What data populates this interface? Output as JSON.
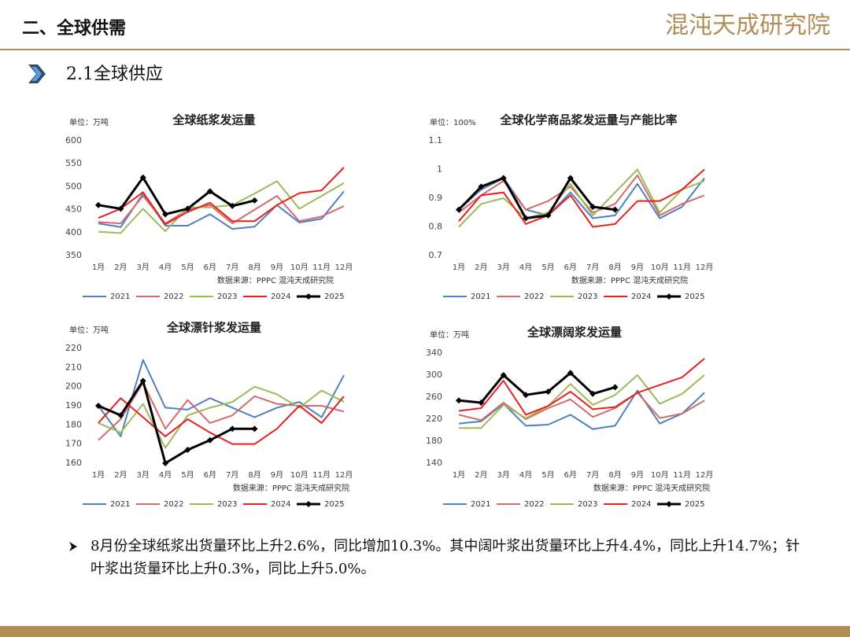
{
  "header": {
    "title": "二、全球供需",
    "logo": "混沌天成研究院",
    "section": "2.1全球供应"
  },
  "chart_data": [
    {
      "type": "line",
      "title": "全球纸浆发运量",
      "unit": "单位：万吨",
      "source": "数据来源：PPPC 混沌天成研究院",
      "categories": [
        "1月",
        "2月",
        "3月",
        "4月",
        "5月",
        "6月",
        "7月",
        "8月",
        "9月",
        "10月",
        "11月",
        "12月"
      ],
      "ylim": [
        350,
        600
      ],
      "yticks": [
        350,
        400,
        450,
        500,
        550,
        600
      ],
      "grid": false,
      "series": [
        {
          "name": "2021",
          "color": "#4f81bd",
          "values": [
            420,
            412,
            485,
            415,
            415,
            440,
            408,
            413,
            460,
            422,
            430,
            490
          ]
        },
        {
          "name": "2022",
          "color": "#d36b6b",
          "values": [
            423,
            420,
            480,
            420,
            450,
            460,
            420,
            450,
            480,
            425,
            435,
            458
          ]
        },
        {
          "name": "2023",
          "color": "#9bbb59",
          "values": [
            402,
            399,
            452,
            403,
            455,
            455,
            460,
            485,
            512,
            452,
            480,
            508
          ]
        },
        {
          "name": "2024",
          "color": "#e8201f",
          "values": [
            432,
            452,
            488,
            418,
            445,
            465,
            425,
            425,
            460,
            486,
            492,
            542
          ]
        },
        {
          "name": "2025",
          "color": "#000000",
          "values": [
            460,
            452,
            520,
            440,
            452,
            490,
            458,
            470,
            null,
            null,
            null,
            null
          ]
        }
      ]
    },
    {
      "type": "line",
      "title": "全球化学商品浆发运量与产能比率",
      "unit": "单位：100%",
      "source": "数据来源：PPPC 混沌天成研究院",
      "categories": [
        "1月",
        "2月",
        "3月",
        "4月",
        "5月",
        "6月",
        "7月",
        "8月",
        "9月",
        "10月",
        "11月",
        "12月"
      ],
      "ylim": [
        0.7,
        1.1
      ],
      "yticks": [
        0.7,
        0.8,
        0.9,
        1,
        1.1
      ],
      "grid": false,
      "series": [
        {
          "name": "2021",
          "color": "#4f81bd",
          "values": [
            0.86,
            0.93,
            0.97,
            0.86,
            0.84,
            0.92,
            0.83,
            0.84,
            0.95,
            0.83,
            0.87,
            0.97
          ]
        },
        {
          "name": "2022",
          "color": "#d36b6b",
          "values": [
            0.85,
            0.91,
            0.96,
            0.86,
            0.89,
            0.94,
            0.85,
            0.88,
            0.98,
            0.84,
            0.88,
            0.91
          ]
        },
        {
          "name": "2023",
          "color": "#9bbb59",
          "values": [
            0.8,
            0.88,
            0.9,
            0.83,
            0.85,
            0.95,
            0.84,
            0.92,
            1.0,
            0.85,
            0.93,
            0.96
          ]
        },
        {
          "name": "2024",
          "color": "#e8201f",
          "values": [
            0.82,
            0.91,
            0.92,
            0.81,
            0.84,
            0.91,
            0.8,
            0.81,
            0.89,
            0.89,
            0.93,
            1.0
          ]
        },
        {
          "name": "2025",
          "color": "#000000",
          "values": [
            0.86,
            0.94,
            0.97,
            0.83,
            0.84,
            0.97,
            0.87,
            0.86,
            null,
            null,
            null,
            null
          ]
        }
      ]
    },
    {
      "type": "line",
      "title": "全球漂针浆发运量",
      "unit": "单位：万吨",
      "source": "数据来源：PPPC 混沌天成研究院",
      "categories": [
        "1月",
        "2月",
        "3月",
        "4月",
        "5月",
        "6月",
        "7月",
        "8月",
        "9月",
        "10月",
        "11月",
        "12月"
      ],
      "ylim": [
        160,
        220
      ],
      "yticks": [
        160,
        170,
        180,
        190,
        200,
        210,
        220
      ],
      "grid": false,
      "series": [
        {
          "name": "2021",
          "color": "#4f81bd",
          "values": [
            190,
            174,
            214,
            189,
            188,
            194,
            189,
            184,
            189,
            192,
            184,
            206
          ]
        },
        {
          "name": "2022",
          "color": "#d36b6b",
          "values": [
            172,
            183,
            202,
            178,
            193,
            181,
            185,
            195,
            191,
            190,
            190,
            187
          ]
        },
        {
          "name": "2023",
          "color": "#9bbb59",
          "values": [
            181,
            176,
            191,
            168,
            185,
            189,
            192,
            200,
            196,
            189,
            198,
            192
          ]
        },
        {
          "name": "2024",
          "color": "#e8201f",
          "values": [
            181,
            194,
            184,
            174,
            183,
            176,
            170,
            170,
            178,
            190,
            181,
            195
          ]
        },
        {
          "name": "2025",
          "color": "#000000",
          "values": [
            190,
            185,
            203,
            160,
            167,
            172,
            178,
            178,
            null,
            null,
            null,
            null
          ]
        }
      ]
    },
    {
      "type": "line",
      "title": "全球漂阔浆发运量",
      "unit": "单位：万吨",
      "source": "数据来源：PPPC 混沌天成研究院",
      "categories": [
        "1月",
        "2月",
        "3月",
        "4月",
        "5月",
        "6月",
        "7月",
        "8月",
        "9月",
        "10月",
        "11月",
        "12月"
      ],
      "ylim": [
        140,
        340
      ],
      "yticks": [
        140,
        180,
        220,
        260,
        300,
        340
      ],
      "grid": false,
      "series": [
        {
          "name": "2021",
          "color": "#4f81bd",
          "values": [
            212,
            216,
            248,
            208,
            210,
            228,
            202,
            208,
            272,
            212,
            230,
            268
          ]
        },
        {
          "name": "2022",
          "color": "#d36b6b",
          "values": [
            228,
            218,
            250,
            220,
            240,
            256,
            224,
            240,
            268,
            222,
            230,
            254
          ]
        },
        {
          "name": "2023",
          "color": "#9bbb59",
          "values": [
            204,
            204,
            246,
            222,
            244,
            284,
            246,
            264,
            300,
            248,
            266,
            300
          ]
        },
        {
          "name": "2024",
          "color": "#e8201f",
          "values": [
            235,
            240,
            290,
            228,
            244,
            270,
            238,
            242,
            268,
            282,
            296,
            330
          ]
        },
        {
          "name": "2025",
          "color": "#000000",
          "values": [
            254,
            250,
            300,
            264,
            270,
            304,
            266,
            278,
            null,
            null,
            null,
            null
          ]
        }
      ]
    }
  ],
  "note": "8月份全球纸浆出货量环比上升2.6%，同比增加10.3%。其中阔叶浆出货量环比上升4.4%，同比上升14.7%；针叶浆出货量环比上升0.3%，同比上升5.0%。"
}
